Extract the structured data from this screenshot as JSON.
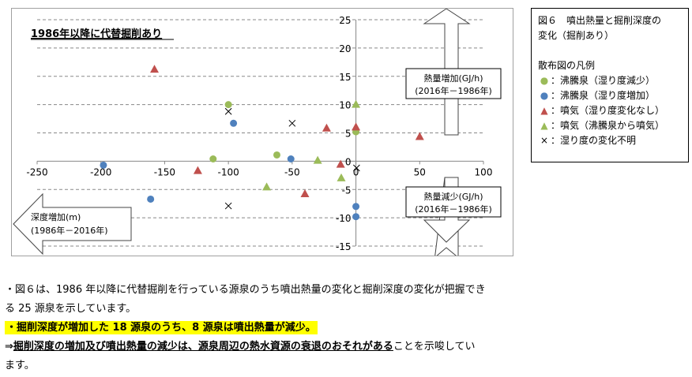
{
  "chart_data": {
    "type": "scatter",
    "title": "1986年以降に代替掘削あり",
    "xlim": [
      -250,
      100
    ],
    "ylim": [
      -15,
      25
    ],
    "xticks": [
      -250,
      -200,
      -150,
      -100,
      -50,
      0,
      50,
      100
    ],
    "yticks": [
      25,
      20,
      15,
      10,
      5,
      0,
      -5,
      -10,
      -15
    ],
    "grid": "horizontal-dashed",
    "annotations": {
      "up": [
        "熱量増加(GJ/h)",
        "(2016年－1986年)"
      ],
      "down": [
        "熱量減少(GJ/h)",
        "(2016年－1986年)"
      ],
      "left": [
        "深度増加(m)",
        "(1986年－2016年)"
      ]
    },
    "series": [
      {
        "name": "沸騰泉（湿り度減少）",
        "marker": "circle",
        "color": "#9bbb59",
        "points": [
          [
            -100,
            10
          ],
          [
            -112,
            0.4
          ],
          [
            -62,
            1.1
          ],
          [
            0,
            5.2
          ]
        ]
      },
      {
        "name": "沸騰泉（湿り度増加）",
        "marker": "circle",
        "color": "#4f81bd",
        "points": [
          [
            -198,
            -0.7
          ],
          [
            -96,
            6.7
          ],
          [
            -51,
            0.4
          ],
          [
            -161,
            -6.7
          ],
          [
            0,
            -8
          ],
          [
            0,
            -9.8
          ]
        ]
      },
      {
        "name": "噴気（湿り度変化なし）",
        "marker": "triangle",
        "color": "#c0504d",
        "points": [
          [
            -158,
            16.2
          ],
          [
            -124,
            -1.7
          ],
          [
            -23,
            5.8
          ],
          [
            0,
            6
          ],
          [
            -12,
            -0.6
          ],
          [
            -40,
            -5.8
          ],
          [
            50,
            4.3
          ]
        ]
      },
      {
        "name": "噴気（沸騰泉から噴気）",
        "marker": "triangle",
        "color": "#9bbb59",
        "points": [
          [
            0,
            10
          ],
          [
            -30,
            0.1
          ],
          [
            -11.5,
            -3
          ],
          [
            -70,
            -4.6
          ]
        ]
      },
      {
        "name": "湿り度の変化不明",
        "marker": "x",
        "color": "#000000",
        "points": [
          [
            -100,
            8.8
          ],
          [
            -50,
            6.7
          ],
          [
            0.5,
            -1.2
          ],
          [
            -100,
            -7.9
          ]
        ]
      }
    ]
  },
  "legend": {
    "title1": "図６　噴出熱量と掘削深度の",
    "title2": "変化（掘削あり）",
    "heading": "散布図の凡例",
    "items": [
      {
        "sym": "●",
        "color": "#9bbb59",
        "label": "：沸騰泉（湿り度減少）"
      },
      {
        "sym": "●",
        "color": "#4f81bd",
        "label": "：沸騰泉（湿り度増加）"
      },
      {
        "sym": "▲",
        "color": "#c0504d",
        "label": "：噴気（湿り度変化なし）"
      },
      {
        "sym": "▲",
        "color": "#9bbb59",
        "label": "：噴気（沸騰泉から噴気）"
      },
      {
        "sym": "×",
        "color": "#000000",
        "label": "：湿り度の変化不明"
      }
    ]
  },
  "text": {
    "line1": "・図６は、1986 年以降に代替掘削を行っている源泉のうち噴出熱量の変化と掘削深度の変化が把握でき",
    "line2": "る 25 源泉を示しています。",
    "highlight": "・掘削深度が増加した 18 源泉のうち、8 源泉は噴出熱量が減少。",
    "arrow": "⇒",
    "bold": "掘削深度の増加及び噴出熱量の減少は、源泉周辺の熱水資源の衰退のおそれがある",
    "rest": "ことを示唆してい",
    "line5": "ます。"
  }
}
